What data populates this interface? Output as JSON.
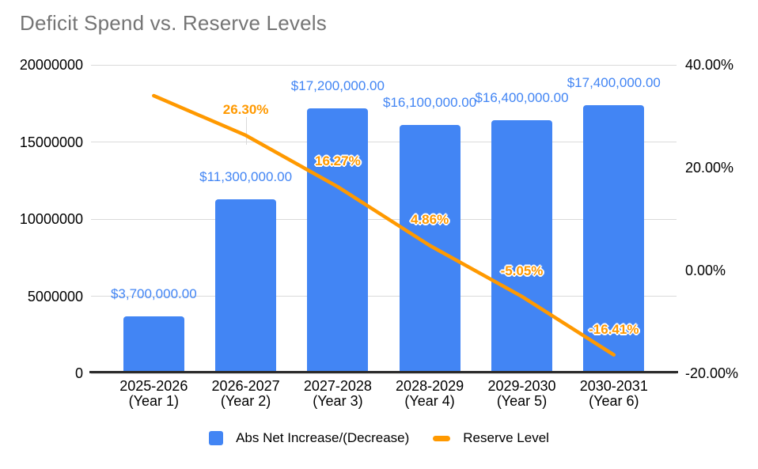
{
  "chart_data": {
    "type": "combo-bar-line",
    "title": "Deficit Spend vs. Reserve Levels",
    "categories": [
      "2025-2026\n(Year 1)",
      "2026-2027\n(Year 2)",
      "2027-2028\n(Year 3)",
      "2028-2029\n(Year 4)",
      "2029-2030\n(Year 5)",
      "2030-2031\n(Year 6)"
    ],
    "series": [
      {
        "name": "Abs Net Increase/(Decrease)",
        "type": "bar",
        "axis": "left",
        "values": [
          3700000,
          11300000,
          17200000,
          16100000,
          16400000,
          17400000
        ],
        "data_labels": [
          "$3,700,000.00",
          "$11,300,000.00",
          "$17,200,000.00",
          "$16,100,000.00",
          "$16,400,000.00",
          "$17,400,000.00"
        ]
      },
      {
        "name": "Reserve Level",
        "type": "line",
        "axis": "right",
        "values": [
          34.0,
          26.3,
          16.27,
          4.86,
          -5.05,
          -16.41
        ],
        "data_labels": [
          "",
          "26.30%",
          "16.27%",
          "4.86%",
          "-5.05%",
          "-16.41%"
        ]
      }
    ],
    "left_axis": {
      "min": 0,
      "max": 20000000,
      "ticks": [
        {
          "label": "20000000",
          "value": 20000000
        },
        {
          "label": "15000000",
          "value": 15000000
        },
        {
          "label": "10000000",
          "value": 10000000
        },
        {
          "label": "5000000",
          "value": 5000000
        },
        {
          "label": "0",
          "value": 0
        }
      ]
    },
    "right_axis": {
      "min": -20,
      "max": 40,
      "ticks": [
        {
          "label": "40.00%",
          "value": 40
        },
        {
          "label": "20.00%",
          "value": 20
        },
        {
          "label": "0.00%",
          "value": 0
        },
        {
          "label": "-20.00%",
          "value": -20
        }
      ]
    },
    "grid": true,
    "legend_position": "bottom"
  },
  "colors": {
    "bar": "#4285F4",
    "line": "#FF9900",
    "bar_label": "#4285F4",
    "line_label": "#FF9900",
    "title": "#757575",
    "axis_text": "#000000",
    "gridline": "#DADADA",
    "axis_line": "#2B2B2B",
    "background": "#FFFFFF"
  }
}
